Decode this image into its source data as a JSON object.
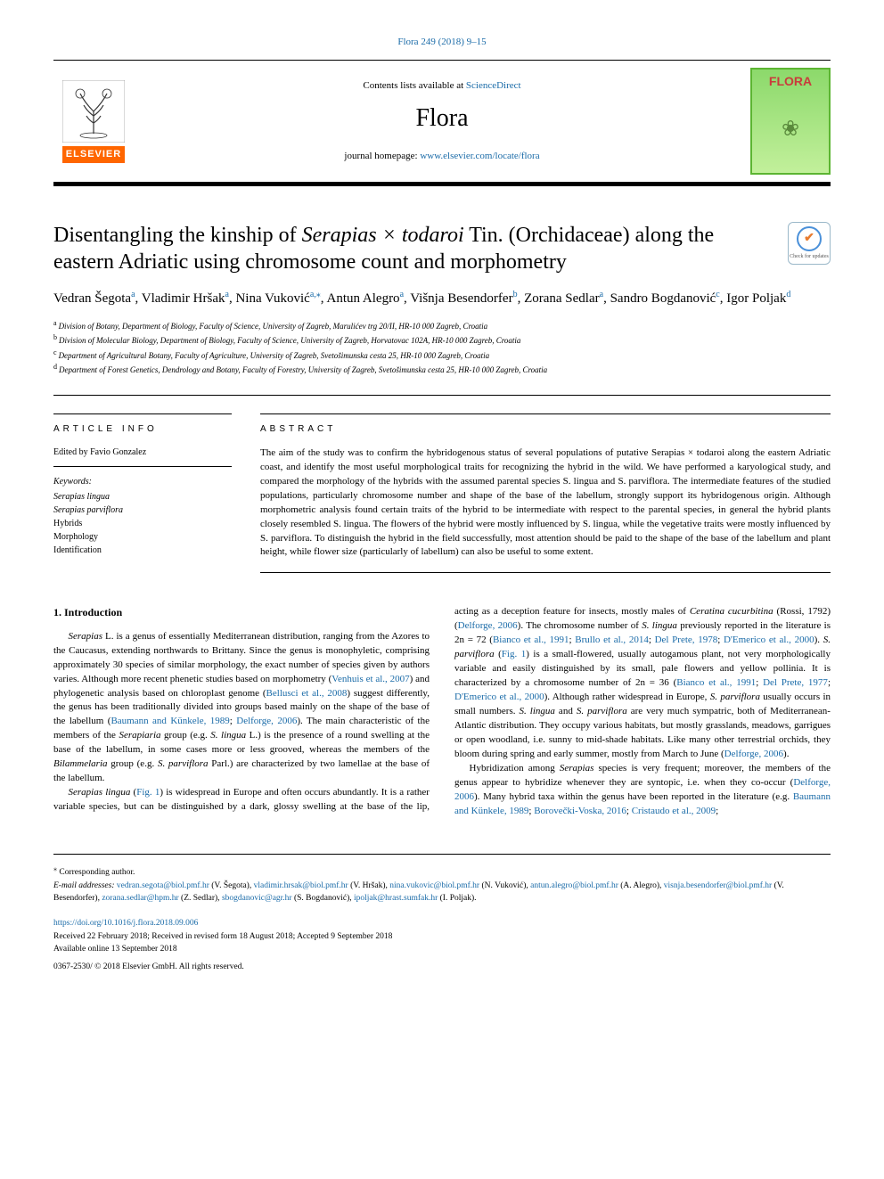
{
  "top_ref": {
    "pre": "Flora 249 (2018) 9–15",
    "link_label": "Flora 249 (2018) 9–15"
  },
  "header": {
    "contents_pre": "Contents lists available at ",
    "contents_link": "ScienceDirect",
    "journal_name": "Flora",
    "homepage_pre": "journal homepage: ",
    "homepage_link": "www.elsevier.com/locate/flora",
    "elsevier": "ELSEVIER",
    "cover_title": "FLORA"
  },
  "title": {
    "pre": "Disentangling the kinship of ",
    "ital": "Serapias × todaroi",
    "post": " Tin. (Orchidaceae) along the eastern Adriatic using chromosome count and morphometry"
  },
  "check_badge": {
    "text": "Check for updates"
  },
  "authors": {
    "a1": "Vedran Šegota",
    "a1s": "a",
    "a2": "Vladimir Hršak",
    "a2s": "a",
    "a3": "Nina Vuković",
    "a3s": "a,",
    "a3c": "⁎",
    "a4": "Antun Alegro",
    "a4s": "a",
    "a5": "Višnja Besendorfer",
    "a5s": "b",
    "a6": "Zorana Sedlar",
    "a6s": "a",
    "a7": "Sandro Bogdanović",
    "a7s": "c",
    "a8": "Igor Poljak",
    "a8s": "d"
  },
  "affiliations": {
    "a": "Division of Botany, Department of Biology, Faculty of Science, University of Zagreb, Marulićev trg 20/II, HR-10 000 Zagreb, Croatia",
    "b": "Division of Molecular Biology, Department of Biology, Faculty of Science, University of Zagreb, Horvatovac 102A, HR-10 000 Zagreb, Croatia",
    "c": "Department of Agricultural Botany, Faculty of Agriculture, University of Zagreb, Svetošimunska cesta 25, HR-10 000 Zagreb, Croatia",
    "d": "Department of Forest Genetics, Dendrology and Botany, Faculty of Forestry, University of Zagreb, Svetošimunska cesta 25, HR-10 000 Zagreb, Croatia"
  },
  "article_info": {
    "head": "ARTICLE INFO",
    "edited": "Edited by Favio Gonzalez",
    "kw_head": "Keywords:",
    "kw": [
      "Serapias lingua",
      "Serapias parviflora",
      "Hybrids",
      "Morphology",
      "Identification"
    ],
    "kw_ital": [
      true,
      true,
      false,
      false,
      false
    ]
  },
  "abstract": {
    "head": "ABSTRACT",
    "text": "The aim of the study was to confirm the hybridogenous status of several populations of putative Serapias × todaroi along the eastern Adriatic coast, and identify the most useful morphological traits for recognizing the hybrid in the wild. We have performed a karyological study, and compared the morphology of the hybrids with the assumed parental species S. lingua and S. parviflora. The intermediate features of the studied populations, particularly chromosome number and shape of the base of the labellum, strongly support its hybridogenous origin. Although morphometric analysis found certain traits of the hybrid to be intermediate with respect to the parental species, in general the hybrid plants closely resembled S. lingua. The flowers of the hybrid were mostly influenced by S. lingua, while the vegetative traits were mostly influenced by S. parviflora. To distinguish the hybrid in the field successfully, most attention should be paid to the shape of the base of the labellum and plant height, while flower size (particularly of labellum) can also be useful to some extent."
  },
  "body": {
    "sec_head": "1. Introduction",
    "p1_pre": "",
    "p1_i1": "Serapias",
    "p1_a": " L. is a genus of essentially Mediterranean distribution, ranging from the Azores to the Caucasus, extending northwards to Brittany. Since the genus is monophyletic, comprising approximately 30 species of similar morphology, the exact number of species given by authors varies. Although more recent phenetic studies based on morphometry (",
    "p1_l1": "Venhuis et al., 2007",
    "p1_b": ") and phylogenetic analysis based on chloroplast genome (",
    "p1_l2": "Bellusci et al., 2008",
    "p1_c": ") suggest differently, the genus has been traditionally divided into groups based mainly on the shape of the base of the labellum (",
    "p1_l3": "Baumann and Künkele, 1989",
    "p1_sep1": "; ",
    "p1_l4": "Delforge, 2006",
    "p1_d": "). The main characteristic of the members of the ",
    "p1_i2": "Serapiaria",
    "p1_e": " group (e.g. ",
    "p1_i3": "S. lingua",
    "p1_f": " L.) is the presence of a round swelling at the base of the labellum, in some cases more or less grooved, whereas the members of the ",
    "p1_i4": "Bilammelaria",
    "p1_g": " group (e.g. ",
    "p1_i5": "S. parviflora",
    "p1_h": " Parl.) are characterized by two lamellae at the base of the labellum.",
    "p2_i1": "Serapias lingua",
    "p2_a": " (",
    "p2_l1": "Fig. 1",
    "p2_b": ") is widespread in Europe and often occurs abundantly. It is a rather variable species, but can be distinguished by a dark, glossy swelling at the base of the lip, acting as a deception feature for insects, mostly males of ",
    "p2_i2": "Ceratina cucurbitina",
    "p2_c": " (Rossi, 1792) (",
    "p2_l2": "Delforge, 2006",
    "p2_d": "). The chromosome number of ",
    "p2_i3": "S. lingua",
    "p2_e": " previously reported in the literature is 2n = 72 (",
    "p2_l3": "Bianco et al., 1991",
    "p2_sep1": "; ",
    "p2_l4": "Brullo et al., 2014",
    "p2_sep2": "; ",
    "p2_l5": "Del Prete, 1978",
    "p2_sep3": "; ",
    "p2_l6": "D'Emerico et al., 2000",
    "p2_f": "). ",
    "p2_i4": "S. parviflora",
    "p2_g": " (",
    "p2_l7": "Fig. 1",
    "p2_h": ") is a small-flowered, usually autogamous plant, not very morphologically variable and easily distinguished by its small, pale flowers and yellow pollinia. It is characterized by a chromosome number of 2n = 36 (",
    "p2_l8": "Bianco et al., 1991",
    "p2_sep4": "; ",
    "p2_l9": "Del Prete, 1977",
    "p2_sep5": "; ",
    "p2_l10": "D'Emerico et al., 2000",
    "p2_i": "). Although rather widespread in Europe, ",
    "p2_i5": "S. parviflora",
    "p2_j": " usually occurs in small numbers. ",
    "p2_i6": "S. lingua",
    "p2_k": " and ",
    "p2_i7": "S. parviflora",
    "p2_l": " are very much sympatric, both of Mediterranean-Atlantic distribution. They occupy various habitats, but mostly grasslands, meadows, garrigues or open woodland, i.e. sunny to mid-shade habitats. Like many other terrestrial orchids, they bloom during spring and early summer, mostly from March to June (",
    "p2_l11": "Delforge, 2006",
    "p2_m": ").",
    "p3_a": "Hybridization among ",
    "p3_i1": "Serapias",
    "p3_b": " species is very frequent; moreover, the members of the genus appear to hybridize whenever they are syntopic, i.e. when they co-occur (",
    "p3_l1": "Delforge, 2006",
    "p3_c": "). Many hybrid taxa within the genus have been reported in the literature (e.g. ",
    "p3_l2": "Baumann and Künkele, 1989",
    "p3_sep1": "; ",
    "p3_l3": "Borovečki-Voska, 2016",
    "p3_sep2": "; ",
    "p3_l4": "Cristaudo et al., 2009",
    "p3_d": ";"
  },
  "footer": {
    "corr": "Corresponding author.",
    "emails_pre": "E-mail addresses:",
    "emails": [
      {
        "addr": "vedran.segota@biol.pmf.hr",
        "who": "(V. Šegota)"
      },
      {
        "addr": "vladimir.hrsak@biol.pmf.hr",
        "who": "(V. Hršak)"
      },
      {
        "addr": "nina.vukovic@biol.pmf.hr",
        "who": "(N. Vuković)"
      },
      {
        "addr": "antun.alegro@biol.pmf.hr",
        "who": "(A. Alegro)"
      },
      {
        "addr": "visnja.besendorfer@biol.pmf.hr",
        "who": "(V. Besendorfer)"
      },
      {
        "addr": "zorana.sedlar@hpm.hr",
        "who": "(Z. Sedlar)"
      },
      {
        "addr": "sbogdanovic@agr.hr",
        "who": "(S. Bogdanović)"
      },
      {
        "addr": "ipoljak@hrast.sumfak.hr",
        "who": "(I. Poljak)"
      }
    ],
    "doi": "https://doi.org/10.1016/j.flora.2018.09.006",
    "received": "Received 22 February 2018; Received in revised form 18 August 2018; Accepted 9 September 2018",
    "available": "Available online 13 September 2018",
    "copyright": "0367-2530/ © 2018 Elsevier GmbH. All rights reserved."
  },
  "colors": {
    "link": "#1a6ba8",
    "elsevier_bg": "#ff6600",
    "flora_border": "#5cb532",
    "flora_title": "#c93c3c"
  }
}
